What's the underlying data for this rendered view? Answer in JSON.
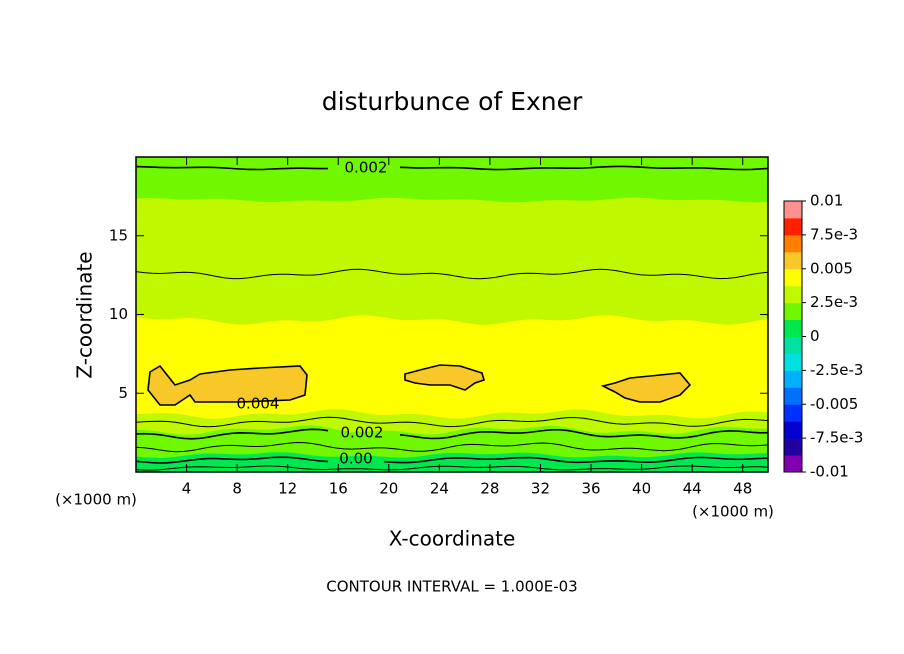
{
  "chart_data": {
    "type": "contour",
    "title": "disturbunce of Exner",
    "xlabel": "X-coordinate",
    "ylabel": "Z-coordinate",
    "x_unit_left": "(×1000 m)",
    "x_unit_right": "(×1000 m)",
    "footnote": "CONTOUR INTERVAL = 1.000E-03",
    "xlim": [
      0,
      50
    ],
    "xticks": [
      4,
      8,
      12,
      16,
      20,
      24,
      28,
      32,
      36,
      40,
      44,
      48
    ],
    "ylim": [
      0,
      20
    ],
    "yticks": [
      5,
      10,
      15
    ],
    "contour_labels": {
      "values": [
        0.002,
        0.004,
        0.002,
        0
      ],
      "value_labels": [
        "0.002",
        "0.004",
        "0.002",
        "0.00"
      ]
    },
    "colorbar": {
      "lim": [
        -0.01,
        0.01
      ],
      "ticks": [
        {
          "value": -0.01,
          "label": "-0.01"
        },
        {
          "value": -0.0075,
          "label": "-7.5e-3"
        },
        -0.005,
        {
          "value": -0.0025,
          "label": "-2.5e-3"
        },
        0,
        {
          "value": 0.0025,
          "label": "2.5e-3"
        },
        0.005,
        {
          "value": 0.0075,
          "label": "7.5e-3"
        },
        0.01
      ],
      "colors": [
        "#8000b0",
        "#2000a0",
        "#0000d0",
        "#0030ff",
        "#0070ff",
        "#00b0ff",
        "#00e0e0",
        "#00e0a0",
        "#00e850",
        "#70f800",
        "#c0f800",
        "#ffff00",
        "#f8c828",
        "#ff8000",
        "#ff2000",
        "#ff9090"
      ]
    }
  }
}
